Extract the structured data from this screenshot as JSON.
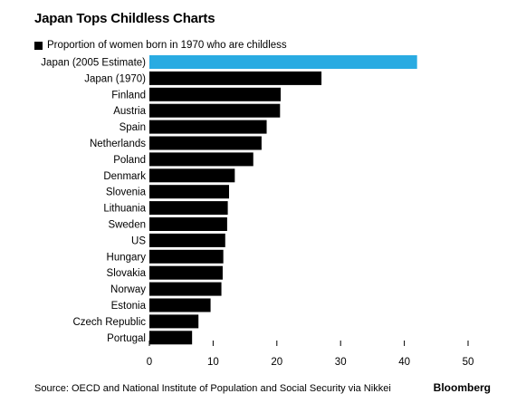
{
  "chart_data": {
    "type": "bar",
    "orientation": "horizontal",
    "title": "Japan Tops Childless Charts",
    "legend": {
      "placement": "top-left"
    },
    "series": [
      {
        "name": "Proportion of women born in 1970 who are childless",
        "color": "#000000",
        "values": [
          42,
          27,
          20.6,
          20.5,
          18.4,
          17.6,
          16.3,
          13.4,
          12.5,
          12.3,
          12.2,
          11.9,
          11.6,
          11.5,
          11.3,
          9.6,
          7.7,
          6.7
        ]
      }
    ],
    "categories": [
      "Japan (2005 Estimate)",
      "Japan (1970)",
      "Finland",
      "Austria",
      "Spain",
      "Netherlands",
      "Poland",
      "Denmark",
      "Slovenia",
      "Lithuania",
      "Sweden",
      "US",
      "Hungary",
      "Slovakia",
      "Norway",
      "Estonia",
      "Czech Republic",
      "Portugal"
    ],
    "highlight": {
      "category": "Japan (2005 Estimate)",
      "color": "#29abe2"
    },
    "xlim": [
      0,
      50
    ],
    "xticks": [
      0,
      10,
      20,
      30,
      40,
      50
    ],
    "grid": false,
    "xlabel": "",
    "ylabel": ""
  },
  "footer": {
    "source": "Source: OECD and National Institute of Population and Social Security via Nikkei",
    "brand": "Bloomberg"
  }
}
